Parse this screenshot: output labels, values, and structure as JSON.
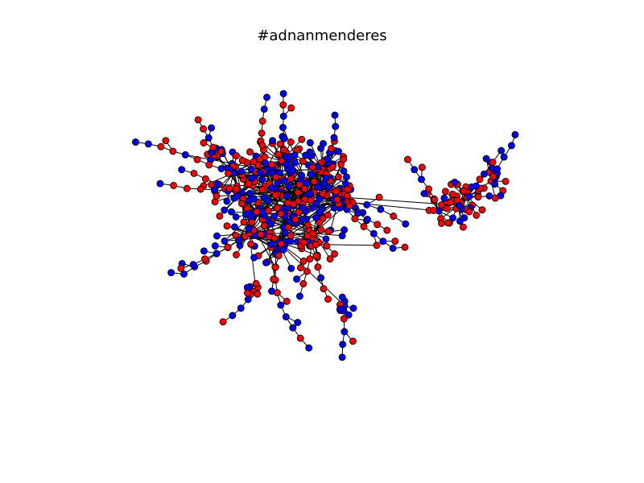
{
  "title": "#adnanmenderes",
  "colors": {
    "group_a": "#0000ff",
    "group_b": "#ff0000",
    "edge": "#000000",
    "node_stroke": "#000000",
    "background": "#ffffff"
  },
  "graph": {
    "type": "network",
    "node_groups": [
      "blue",
      "red"
    ]
  }
}
